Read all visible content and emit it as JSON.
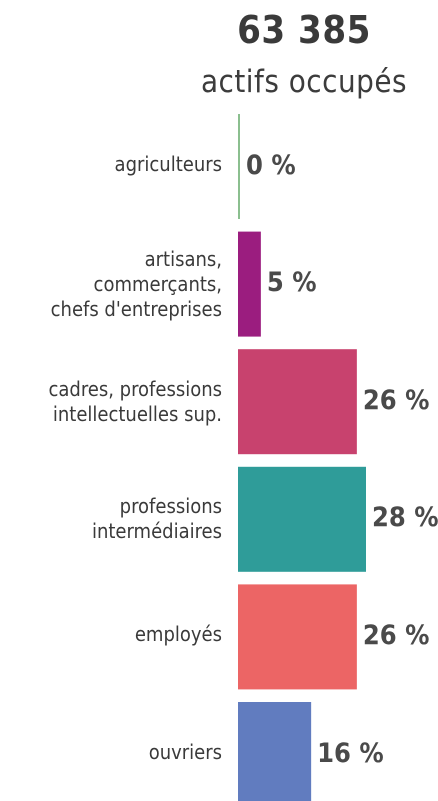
{
  "header": {
    "total": "63 385",
    "subtitle": "actifs occupés"
  },
  "chart_data": {
    "type": "bar",
    "orientation": "horizontal",
    "categories": [
      "agriculteurs",
      "artisans,\ncommerçants,\nchefs d'entreprises",
      "cadres, professions\nintellectuelles sup.",
      "professions\nintermédiaires",
      "employés",
      "ouvriers"
    ],
    "values": [
      0,
      5,
      26,
      28,
      26,
      16
    ],
    "value_labels": [
      "0 %",
      "5 %",
      "26 %",
      "28 %",
      "26 %",
      "16 %"
    ],
    "colors": [
      "#8bbf8f",
      "#9b1d7f",
      "#c8426e",
      "#2f9c99",
      "#ec6565",
      "#617cbf"
    ],
    "xlim": [
      0,
      28
    ]
  }
}
